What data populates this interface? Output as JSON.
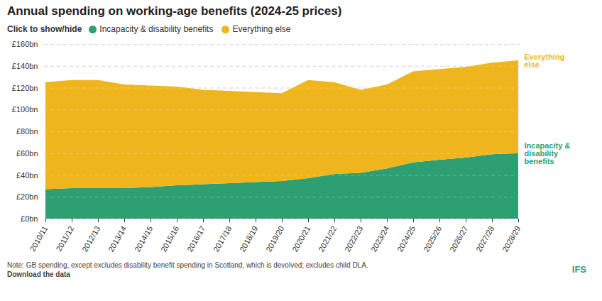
{
  "chart_data": {
    "type": "area",
    "title": "Annual spending on working-age benefits (2024-25 prices)",
    "legend_prompt": "Click to show/hide",
    "note": "Note: GB spending, except excludes disability benefit spending in Scotland, which is devolved; excludes child DLA.",
    "source_link": "Download the data",
    "logo": "IFS",
    "stacked": true,
    "grid": true,
    "categories": [
      "2010/11",
      "2011/12",
      "2012/13",
      "2013/14",
      "2014/15",
      "2015/16",
      "2016/17",
      "2017/18",
      "2018/19",
      "2019/20",
      "2020/21",
      "2021/22",
      "2022/23",
      "2023/24",
      "2024/25",
      "2025/26",
      "2026/27",
      "2027/28",
      "2028/29"
    ],
    "series": [
      {
        "name": "Incapacity & disability benefits",
        "color": "#2d9f73",
        "values": [
          27,
          28,
          28,
          28,
          29,
          30.5,
          31.5,
          32.5,
          33.5,
          34.5,
          37,
          41,
          42,
          46,
          51.5,
          54,
          56,
          59,
          60
        ]
      },
      {
        "name": "Everything else",
        "color": "#efb51d",
        "values": [
          98,
          99,
          99,
          95,
          93,
          90.5,
          86.5,
          84.5,
          82.5,
          80.5,
          90,
          84,
          76,
          77,
          83.5,
          83,
          83,
          84,
          85
        ]
      }
    ],
    "ylim": [
      0,
      160
    ],
    "yticks": [
      {
        "value": 0,
        "label": "£0bn"
      },
      {
        "value": 20,
        "label": "£20bn"
      },
      {
        "value": 40,
        "label": "£40bn"
      },
      {
        "value": 60,
        "label": "£60bn"
      },
      {
        "value": 80,
        "label": "£80bn"
      },
      {
        "value": 100,
        "label": "£100bn"
      },
      {
        "value": 120,
        "label": "£120bn"
      },
      {
        "value": 140,
        "label": "£140bn"
      },
      {
        "value": 160,
        "label": "£160bn"
      }
    ]
  }
}
